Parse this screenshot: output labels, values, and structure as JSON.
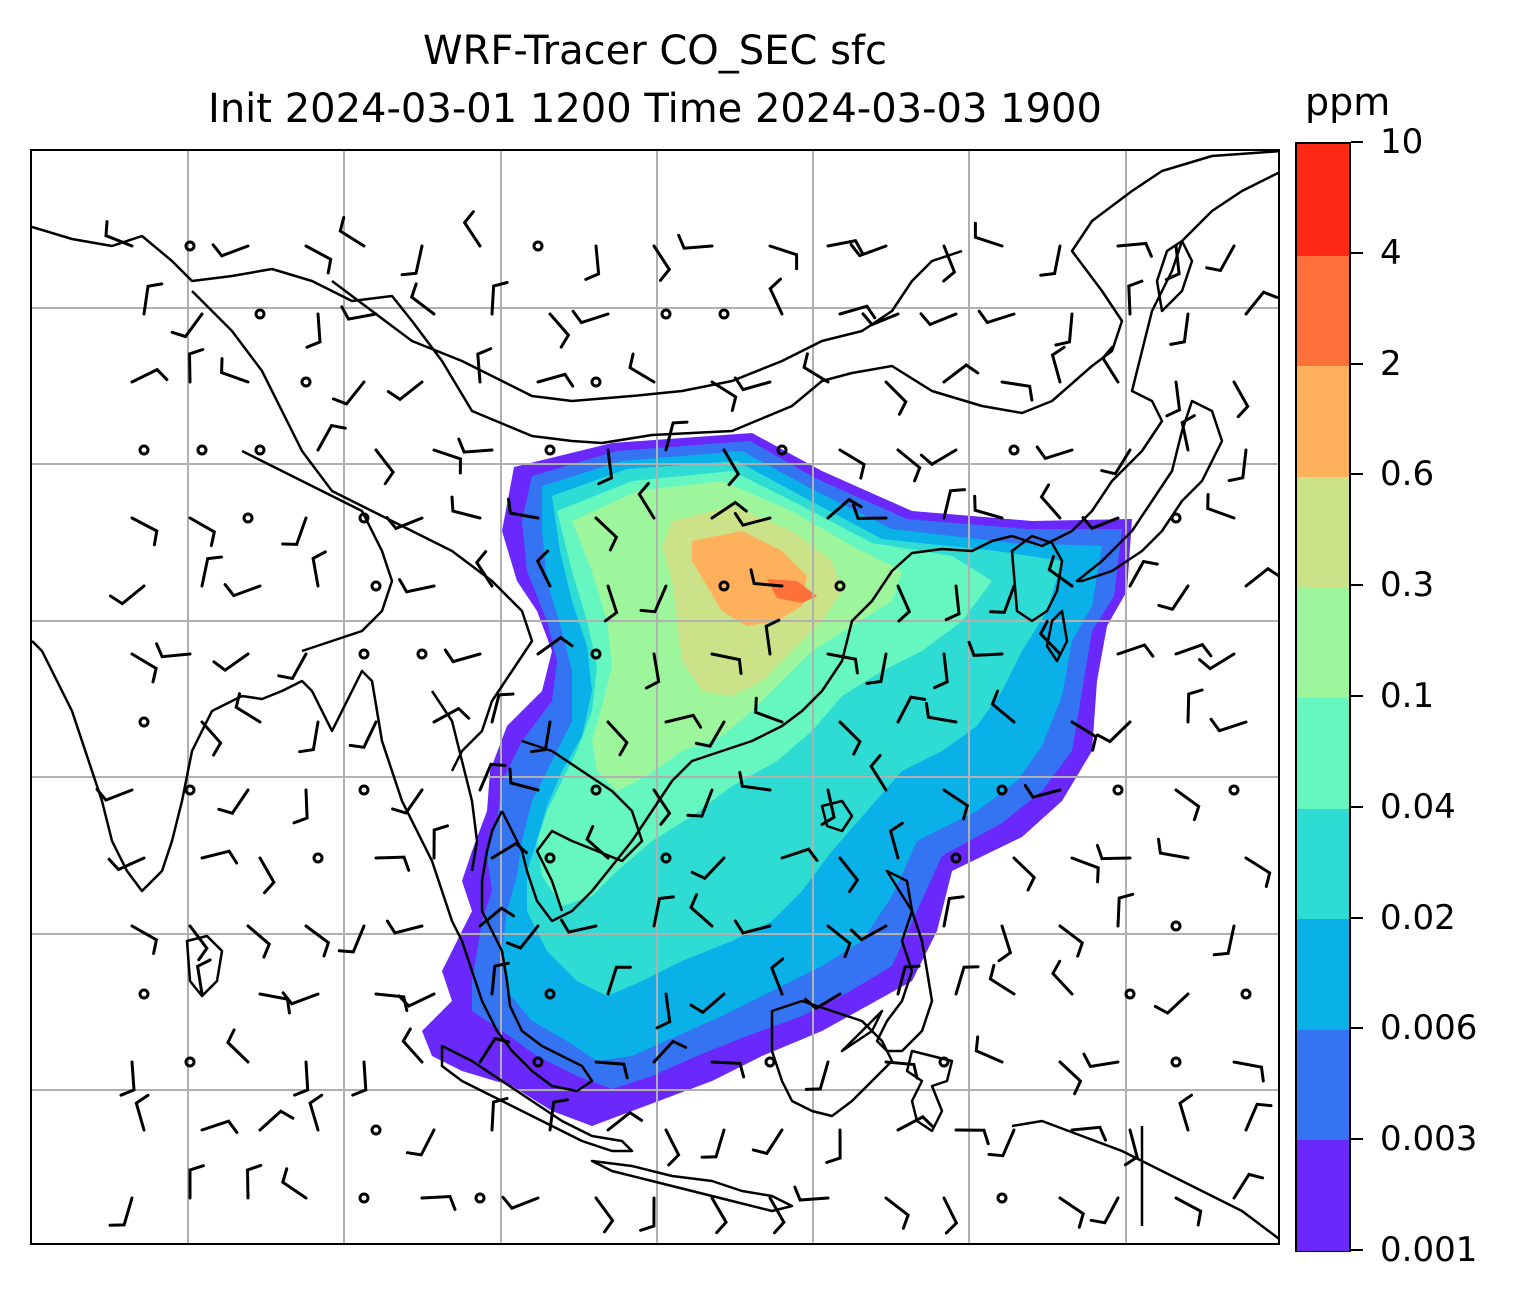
{
  "title": {
    "line1": "WRF-Tracer CO_SEC sfc",
    "line2": "Init 2024-03-01 1200 Time 2024-03-03 1900"
  },
  "colorbar": {
    "unit": "ppm",
    "levels": [
      "0.001",
      "0.003",
      "0.006",
      "0.02",
      "0.04",
      "0.1",
      "0.3",
      "0.6",
      "2",
      "4",
      "10"
    ],
    "colors": [
      "#6a28fb",
      "#3474f2",
      "#09b1e8",
      "#2edcd3",
      "#66f7c0",
      "#9df69b",
      "#cce288",
      "#ffb05b",
      "#ff703a",
      "#ff2918"
    ]
  },
  "map": {
    "field": "CO_SEC",
    "level": "sfc",
    "plume_levels_shown": [
      "0.001",
      "0.003",
      "0.006",
      "0.02",
      "0.04",
      "0.1",
      "0.3",
      "0.6",
      "2"
    ],
    "gridlines": true,
    "coastlines": true,
    "country_borders": true,
    "wind_barbs": true
  }
}
